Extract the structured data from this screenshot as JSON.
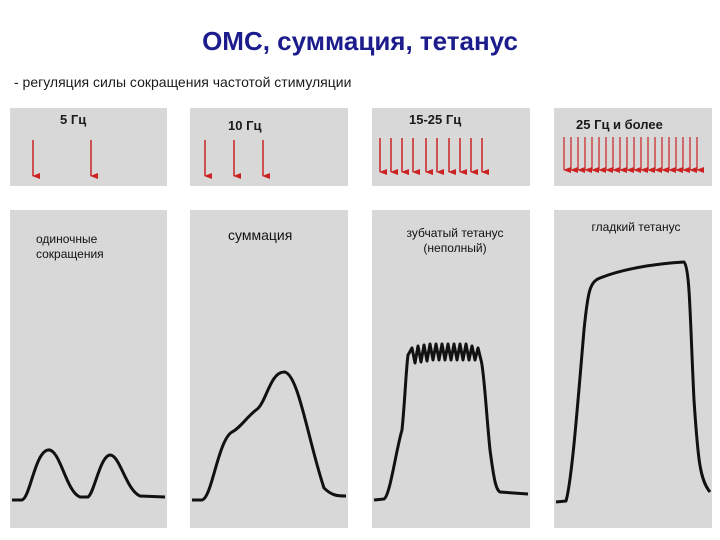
{
  "title": "ОМС, суммация, тетанус",
  "subtitle": "- регуляция силы сокращения частотой стимуляции",
  "columns": [
    {
      "frequency": "5 Гц",
      "label_lines": [
        "одиночные",
        "сокращения"
      ],
      "stimulus_count": 2
    },
    {
      "frequency": "10 Гц",
      "label_lines": [
        "суммация"
      ],
      "stimulus_count": 3
    },
    {
      "frequency": "15-25 Гц",
      "label_lines": [
        "зубчатый тетанус",
        "(неполный)"
      ],
      "stimulus_count": 10
    },
    {
      "frequency": "25 Гц и более",
      "label_lines": [
        "гладкий тетанус"
      ],
      "stimulus_count": 20
    }
  ],
  "colors": {
    "title": "#1c1c8c",
    "arrow": "#cc2222",
    "panel": "#d8d8d8",
    "trace": "#111111"
  }
}
